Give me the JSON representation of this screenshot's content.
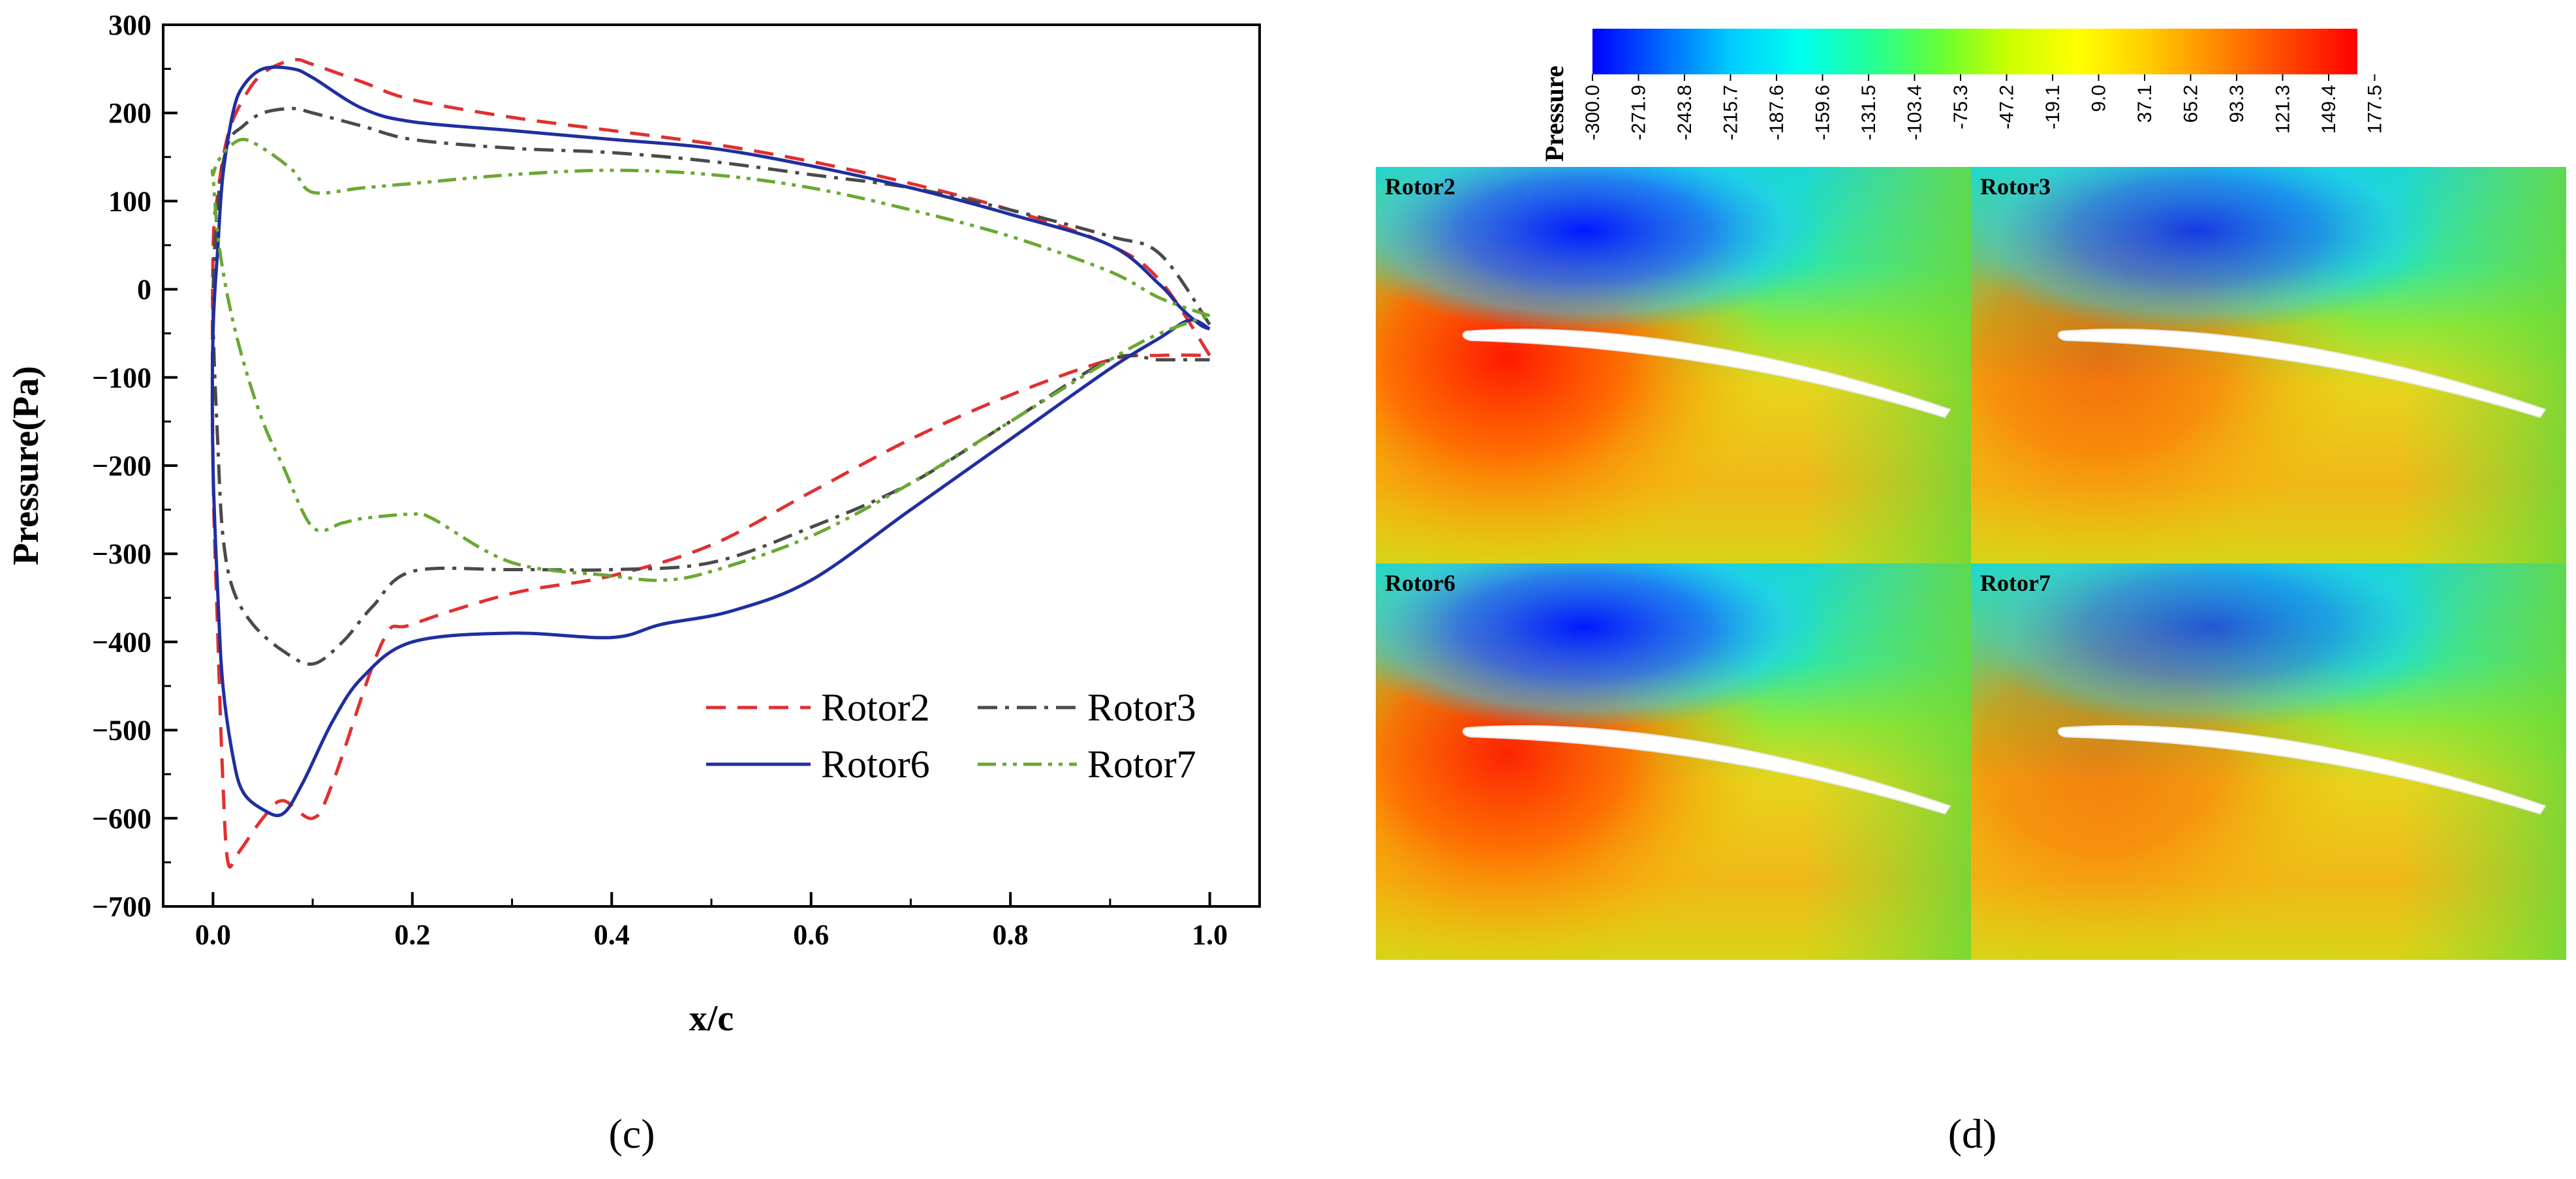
{
  "chart_data": [
    {
      "type": "line",
      "panel_label": "(c)",
      "xlabel": "x/c",
      "ylabel": "Pressure(Pa)",
      "xlim": [
        -0.05,
        1.05
      ],
      "ylim": [
        -700,
        300
      ],
      "xticks": [
        0.0,
        0.2,
        0.4,
        0.6,
        0.8,
        1.0
      ],
      "xtick_labels": [
        "0.0",
        "0.2",
        "0.4",
        "0.6",
        "0.8",
        "1.0"
      ],
      "yticks": [
        300,
        200,
        100,
        0,
        -100,
        -200,
        -300,
        -400,
        -500,
        -600,
        -700
      ],
      "ytick_labels": [
        "300",
        "200",
        "100",
        "0",
        "−100",
        "−200",
        "−300",
        "−400",
        "−500",
        "−600",
        "−700"
      ],
      "legend": "bottom-right",
      "series": [
        {
          "name": "Rotor2",
          "color": "#e03030",
          "dash": "dashed",
          "x": [
            1.0,
            0.95,
            0.9,
            0.8,
            0.7,
            0.6,
            0.5,
            0.4,
            0.3,
            0.2,
            0.15,
            0.1,
            0.08,
            0.05,
            0.03,
            0.015,
            0.005,
            0.0,
            0.0,
            0.005,
            0.01,
            0.015,
            0.025,
            0.05,
            0.07,
            0.1,
            0.12,
            0.17,
            0.2,
            0.3,
            0.4,
            0.5,
            0.6,
            0.7,
            0.8,
            0.9,
            0.95,
            1.0
          ],
          "y": [
            -75,
            10,
            50,
            90,
            120,
            145,
            165,
            180,
            195,
            215,
            235,
            255,
            260,
            245,
            215,
            175,
            110,
            40,
            -200,
            -400,
            -560,
            -650,
            -640,
            -600,
            -580,
            -600,
            -560,
            -400,
            -380,
            -345,
            -325,
            -290,
            -230,
            -170,
            -120,
            -80,
            -75,
            -75
          ]
        },
        {
          "name": "Rotor3",
          "color": "#4a4a4a",
          "dash": "dashdot",
          "x": [
            1.0,
            0.95,
            0.9,
            0.8,
            0.7,
            0.6,
            0.5,
            0.4,
            0.3,
            0.2,
            0.15,
            0.1,
            0.08,
            0.05,
            0.03,
            0.015,
            0.005,
            0.0,
            0.005,
            0.01,
            0.02,
            0.04,
            0.07,
            0.1,
            0.13,
            0.16,
            0.2,
            0.3,
            0.4,
            0.5,
            0.6,
            0.7,
            0.8,
            0.9,
            0.95,
            1.0
          ],
          "y": [
            -40,
            40,
            60,
            90,
            115,
            130,
            145,
            155,
            160,
            170,
            185,
            200,
            205,
            200,
            185,
            165,
            100,
            -20,
            -180,
            -280,
            -340,
            -380,
            -410,
            -425,
            -400,
            -360,
            -320,
            -318,
            -318,
            -310,
            -270,
            -220,
            -150,
            -80,
            -80,
            -80
          ]
        },
        {
          "name": "Rotor6",
          "color": "#1f2fa0",
          "dash": "solid",
          "x": [
            1.0,
            0.99,
            0.97,
            0.95,
            0.9,
            0.8,
            0.7,
            0.6,
            0.5,
            0.4,
            0.3,
            0.2,
            0.15,
            0.1,
            0.08,
            0.05,
            0.03,
            0.02,
            0.01,
            0.005,
            0.0,
            0.0,
            0.005,
            0.01,
            0.02,
            0.03,
            0.05,
            0.07,
            0.09,
            0.12,
            0.15,
            0.2,
            0.3,
            0.4,
            0.45,
            0.52,
            0.6,
            0.7,
            0.8,
            0.9,
            0.95,
            0.98,
            1.0
          ],
          "y": [
            -45,
            -40,
            -20,
            5,
            50,
            85,
            115,
            140,
            160,
            170,
            180,
            190,
            205,
            240,
            250,
            250,
            230,
            200,
            130,
            50,
            -50,
            -200,
            -350,
            -450,
            -530,
            -570,
            -590,
            -595,
            -560,
            -490,
            -440,
            -400,
            -390,
            -395,
            -380,
            -365,
            -330,
            -250,
            -170,
            -90,
            -55,
            -35,
            -45
          ]
        },
        {
          "name": "Rotor7",
          "color": "#6aa832",
          "dash": "dashdotdot",
          "x": [
            1.0,
            0.95,
            0.9,
            0.8,
            0.7,
            0.6,
            0.5,
            0.4,
            0.3,
            0.2,
            0.15,
            0.1,
            0.08,
            0.05,
            0.03,
            0.015,
            0.005,
            0.0,
            0.0,
            0.005,
            0.015,
            0.03,
            0.05,
            0.07,
            0.1,
            0.13,
            0.15,
            0.2,
            0.22,
            0.3,
            0.4,
            0.45,
            0.5,
            0.6,
            0.7,
            0.8,
            0.9,
            0.95,
            1.0
          ],
          "y": [
            -30,
            -10,
            20,
            60,
            90,
            115,
            130,
            135,
            130,
            120,
            115,
            110,
            135,
            160,
            170,
            160,
            145,
            130,
            130,
            60,
            -10,
            -80,
            -150,
            -200,
            -270,
            -265,
            -260,
            -255,
            -260,
            -310,
            -325,
            -330,
            -320,
            -280,
            -220,
            -150,
            -80,
            -50,
            -30
          ]
        }
      ]
    },
    {
      "type": "heatmap",
      "panel_label": "(d)",
      "title": "Pressure",
      "colorbar_ticks": [
        "-300.0",
        "-271.9",
        "-243.8",
        "-215.7",
        "-187.6",
        "-159.6",
        "-131.5",
        "-103.4",
        "-75.3",
        "-47.2",
        "-19.1",
        "9.0",
        "37.1",
        "65.2",
        "93.3",
        "121.3",
        "149.4",
        "177.5"
      ],
      "colormap": [
        "#0000ff",
        "#0066ff",
        "#00ccff",
        "#00ffee",
        "#22ff99",
        "#66ff33",
        "#ccff00",
        "#ffff00",
        "#ffcc00",
        "#ff8800",
        "#ff4400",
        "#ff0000"
      ],
      "panels": [
        {
          "name": "Rotor2",
          "suction_strength": 1.0,
          "pressure_strength": 1.0
        },
        {
          "name": "Rotor3",
          "suction_strength": 0.8,
          "pressure_strength": 0.55
        },
        {
          "name": "Rotor6",
          "suction_strength": 1.0,
          "pressure_strength": 0.95
        },
        {
          "name": "Rotor7",
          "suction_strength": 0.65,
          "pressure_strength": 0.45
        }
      ]
    }
  ]
}
